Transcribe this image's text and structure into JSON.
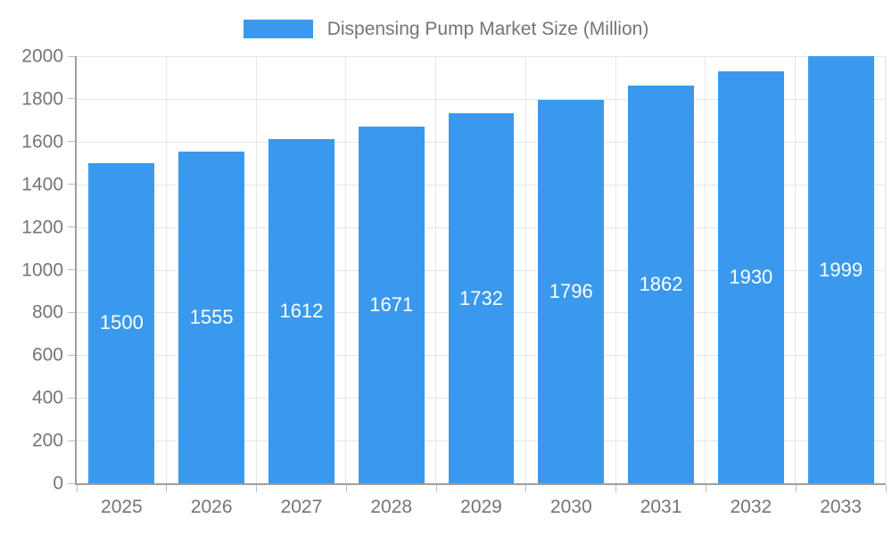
{
  "chart_data": {
    "type": "bar",
    "title": "Dispensing Pump Market Size (Million)",
    "series_name": "Dispensing Pump Market Size (Million)",
    "categories": [
      "2025",
      "2026",
      "2027",
      "2028",
      "2029",
      "2030",
      "2031",
      "2032",
      "2033"
    ],
    "values": [
      1500,
      1555,
      1612,
      1671,
      1732,
      1796,
      1862,
      1930,
      1999
    ],
    "xlabel": "",
    "ylabel": "",
    "ylim": [
      0,
      2000
    ],
    "ytick_step": 200,
    "grid": true,
    "legend_position": "top-center",
    "bar_label_position": "inside-center",
    "colors": {
      "bar": "#3A99EC",
      "bar_label": "#FFFFFF",
      "axis_text": "#757575",
      "legend_text": "#757575",
      "axis_line": "#9E9E9E",
      "tick_line": "#BDBDBD",
      "grid_line": "#E6E6E6",
      "background": "#FFFFFF"
    }
  }
}
